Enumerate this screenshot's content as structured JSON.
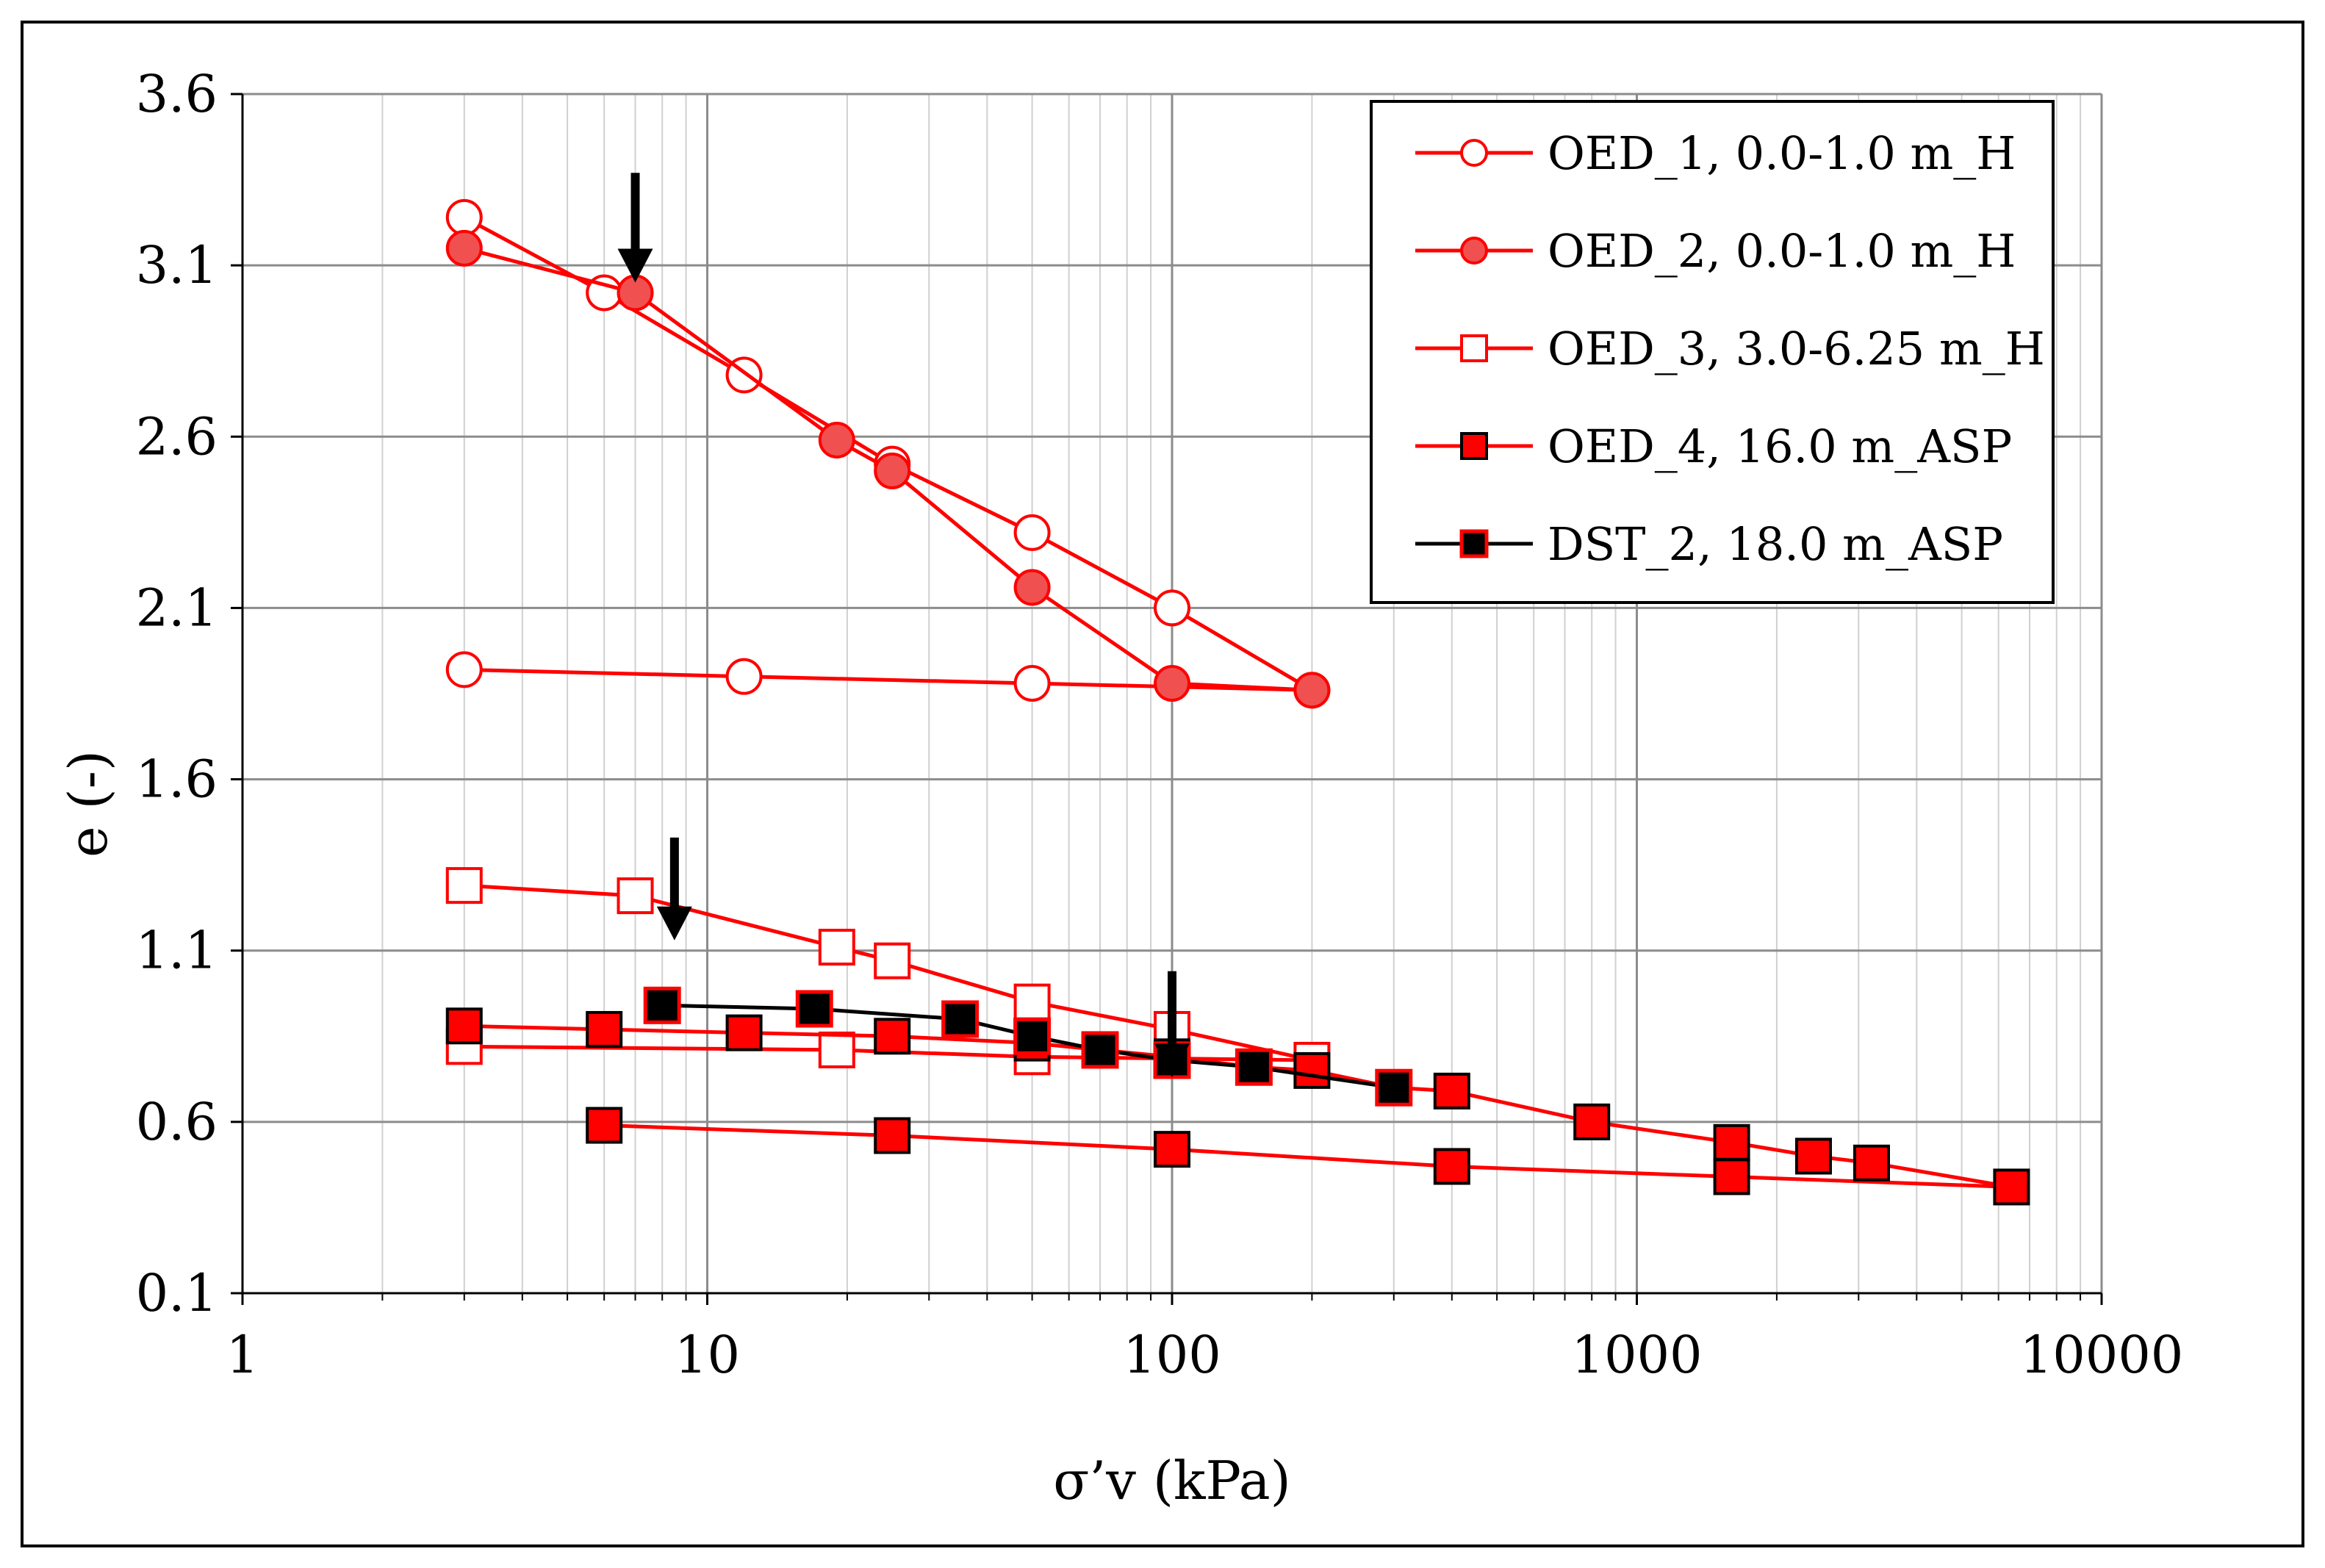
{
  "chart_data": {
    "type": "scatter",
    "title": "",
    "xlabel": "σ’v (kPa)",
    "ylabel": "e (-)",
    "xscale": "log",
    "xlim": [
      1,
      10000
    ],
    "ylim": [
      0.1,
      3.6
    ],
    "xticks": [
      1,
      10,
      100,
      1000,
      10000
    ],
    "xtick_labels": [
      "1",
      "10",
      "100",
      "1000",
      "10000"
    ],
    "yticks": [
      0.1,
      0.6,
      1.1,
      1.6,
      2.1,
      2.6,
      3.1,
      3.6
    ],
    "ytick_labels": [
      "0.1",
      "0.6",
      "1.1",
      "1.6",
      "2.1",
      "2.6",
      "3.1",
      "3.6"
    ],
    "grid": true,
    "legend_position": "top-right",
    "series": [
      {
        "name": "OED_1, 0.0-1.0 m_H",
        "color": "#ff0000",
        "marker": "circle-open",
        "x": [
          3,
          6,
          12,
          25,
          50,
          100,
          200,
          50,
          12,
          3
        ],
        "y": [
          3.24,
          3.02,
          2.78,
          2.52,
          2.32,
          2.1,
          1.86,
          1.88,
          1.9,
          1.92
        ]
      },
      {
        "name": "OED_2, 0.0-1.0 m_H",
        "color": "#ff0000",
        "marker": "circle-filled",
        "x": [
          3,
          7,
          19,
          25,
          50,
          100,
          200
        ],
        "y": [
          3.15,
          3.02,
          2.59,
          2.5,
          2.16,
          1.88,
          1.86
        ]
      },
      {
        "name": "OED_3, 3.0-6.25 m_H",
        "color": "#ff0000",
        "marker": "square-open",
        "x": [
          3,
          7,
          19,
          25,
          50,
          100,
          200,
          50,
          19,
          3
        ],
        "y": [
          1.29,
          1.26,
          1.11,
          1.07,
          0.95,
          0.87,
          0.78,
          0.79,
          0.81,
          0.82
        ]
      },
      {
        "name": "OED_4, 16.0 m_ASP",
        "color": "#ff0000",
        "marker": "square-filled-red",
        "x": [
          3,
          6,
          12,
          25,
          50,
          70,
          100,
          150,
          200,
          300,
          400,
          800,
          1600,
          2400,
          3200,
          6400,
          1600,
          400,
          100,
          25,
          6
        ],
        "y": [
          0.88,
          0.87,
          0.86,
          0.85,
          0.83,
          0.81,
          0.79,
          0.76,
          0.75,
          0.7,
          0.69,
          0.6,
          0.54,
          0.5,
          0.48,
          0.41,
          0.44,
          0.47,
          0.52,
          0.56,
          0.59
        ]
      },
      {
        "name": "DST_2, 18.0 m_ASP",
        "color": "#000000",
        "marker": "square-filled-black",
        "x": [
          8,
          17,
          35,
          50,
          70,
          100,
          150,
          300
        ],
        "y": [
          0.94,
          0.93,
          0.9,
          0.85,
          0.81,
          0.78,
          0.76,
          0.7
        ]
      }
    ],
    "annotations": [
      {
        "type": "arrow",
        "x": 7,
        "y_top": 3.37,
        "y_tip": 3.05
      },
      {
        "type": "arrow",
        "x": 8.5,
        "y_top": 1.43,
        "y_tip": 1.13
      },
      {
        "type": "arrow",
        "x": 100,
        "y_top": 1.04,
        "y_tip": 0.73
      }
    ]
  }
}
